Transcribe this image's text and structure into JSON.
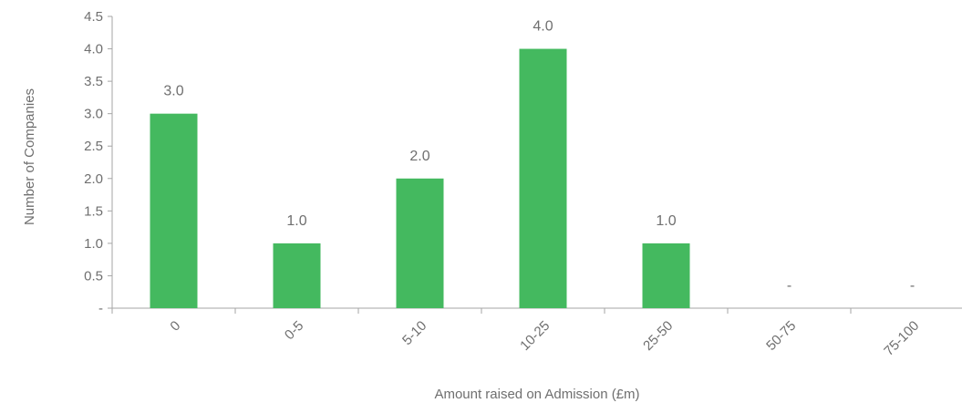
{
  "chart_data": {
    "type": "bar",
    "categories": [
      "0",
      "0-5",
      "5-10",
      "10-25",
      "25-50",
      "50-75",
      "75-100"
    ],
    "values": [
      3.0,
      1.0,
      2.0,
      4.0,
      1.0,
      0,
      0
    ],
    "data_labels": [
      "3.0",
      "1.0",
      "2.0",
      "4.0",
      "1.0",
      "-",
      "-"
    ],
    "xlabel": "Amount raised on Admission (£m)",
    "ylabel": "Number of Companies",
    "ylim": [
      0,
      4.5
    ],
    "y_ticks": [
      0,
      0.5,
      1.0,
      1.5,
      2.0,
      2.5,
      3.0,
      3.5,
      4.0,
      4.5
    ],
    "y_tick_labels": [
      "-",
      "0.5",
      "1.0",
      "1.5",
      "2.0",
      "2.5",
      "3.0",
      "3.5",
      "4.0",
      "4.5"
    ],
    "bar_color": "#44b95f",
    "grid": false,
    "legend": "none"
  }
}
